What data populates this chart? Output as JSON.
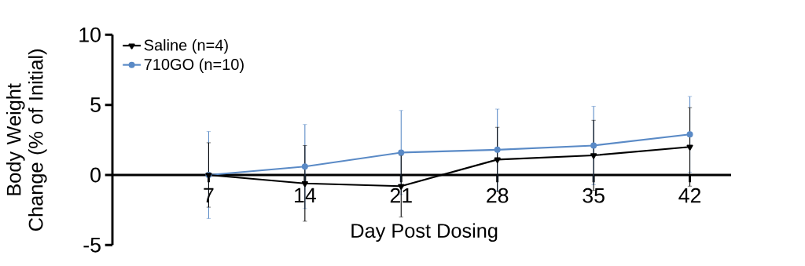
{
  "chart_data": {
    "type": "line",
    "xlabel": "Day Post Dosing",
    "ylabel": "Body Weight Change (% of Initial)",
    "x": [
      7,
      14,
      21,
      28,
      35,
      42
    ],
    "series": [
      {
        "name": "Saline (n=4)",
        "color": "#000000",
        "marker": "triangle",
        "values": [
          0,
          -0.6,
          -0.8,
          1.1,
          1.4,
          2.0
        ],
        "errors": [
          2.3,
          2.7,
          2.2,
          2.3,
          2.5,
          2.8
        ]
      },
      {
        "name": "710GO (n=10)",
        "color": "#5a8ac6",
        "marker": "circle",
        "values": [
          0,
          0.6,
          1.6,
          1.8,
          2.1,
          2.9
        ],
        "errors": [
          3.1,
          3.0,
          3.0,
          2.9,
          2.8,
          2.7
        ]
      }
    ],
    "xlim": [
      0,
      45
    ],
    "ylim": [
      -5,
      10
    ],
    "xticks": [
      7,
      14,
      21,
      28,
      35,
      42
    ],
    "yticks": [
      -5,
      0,
      5,
      10
    ],
    "legend": "top left"
  }
}
